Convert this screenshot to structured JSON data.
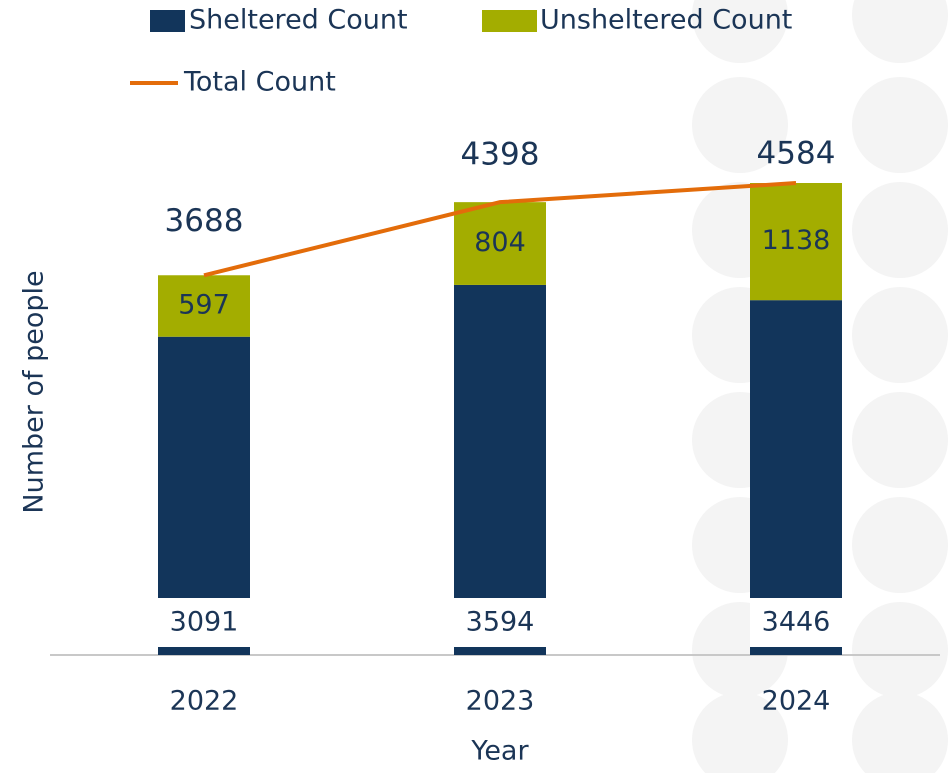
{
  "chart_data": {
    "type": "bar",
    "stacked": true,
    "x_label": "Year",
    "y_label": "Number of people",
    "categories": [
      "2022",
      "2023",
      "2024"
    ],
    "series": [
      {
        "name": "Sheltered Count",
        "color": "#12355b",
        "values": [
          3091,
          3594,
          3446
        ]
      },
      {
        "name": "Unsheltered Count",
        "color": "#a3ad00",
        "values": [
          597,
          804,
          1138
        ]
      },
      {
        "name": "Total Count",
        "type": "line",
        "color": "#e36c0a",
        "values": [
          3688,
          4398,
          4584
        ]
      }
    ]
  }
}
